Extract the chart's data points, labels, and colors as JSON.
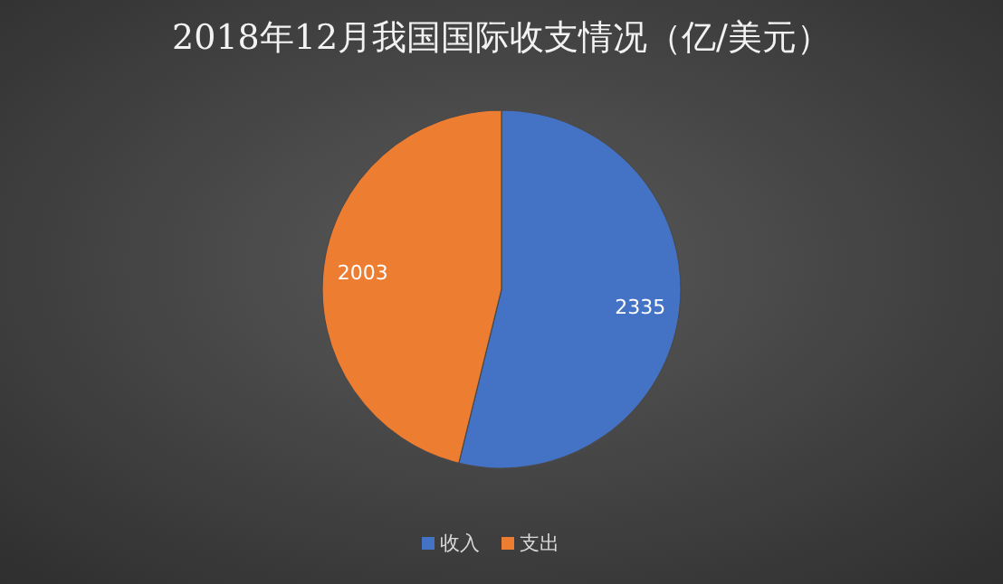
{
  "chart_data": {
    "type": "pie",
    "title": "2018年12月我国国际收支情况（亿/美元）",
    "categories": [
      "收入",
      "支出"
    ],
    "values": [
      2335,
      2003
    ],
    "colors": [
      "#4472c4",
      "#ed7d31"
    ],
    "data_labels": true,
    "legend": "bottom"
  }
}
